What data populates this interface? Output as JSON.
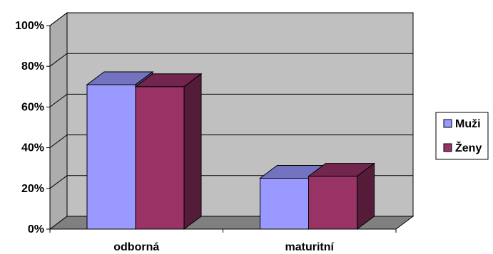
{
  "chart_data": {
    "type": "bar",
    "style": "3d-clustered-column",
    "categories": [
      "odborná",
      "maturitní"
    ],
    "series": [
      {
        "name": "Muži",
        "values": [
          71,
          25
        ],
        "color": "#9999ff"
      },
      {
        "name": "Ženy",
        "values": [
          70,
          26
        ],
        "color": "#993366"
      }
    ],
    "yticks": [
      "0%",
      "20%",
      "40%",
      "60%",
      "80%",
      "100%"
    ],
    "ylim": [
      0,
      100
    ],
    "grid": true,
    "legend": "right",
    "wall_color": "#c0c0c0",
    "floor_color": "#808080"
  }
}
